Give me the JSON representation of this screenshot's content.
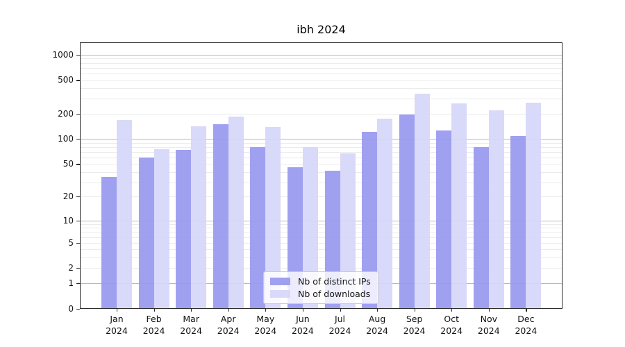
{
  "chart_data": {
    "type": "bar",
    "title": "ibh 2024",
    "categories": [
      "Jan 2024",
      "Feb 2024",
      "Mar 2024",
      "Apr 2024",
      "May 2024",
      "Jun 2024",
      "Jul 2024",
      "Aug 2024",
      "Sep 2024",
      "Oct 2024",
      "Nov 2024",
      "Dec 2024"
    ],
    "series": [
      {
        "name": "Nb of distinct IPs",
        "color": "rgba(152,152,240,0.92)",
        "values": [
          35,
          60,
          75,
          150,
          80,
          46,
          42,
          122,
          196,
          128,
          80,
          109
        ]
      },
      {
        "name": "Nb of downloads",
        "color": "rgba(214,214,248,0.92)",
        "values": [
          170,
          76,
          143,
          185,
          140,
          80,
          68,
          175,
          350,
          265,
          220,
          275
        ]
      }
    ],
    "yscale": "log1p",
    "ylim": [
      0,
      1400
    ],
    "yticks": [
      1000,
      500,
      200,
      100,
      50,
      20,
      10,
      5,
      2,
      1,
      0
    ],
    "ytick_labels": [
      "1000",
      "500",
      "200",
      "100",
      "50",
      "20",
      "10",
      "5",
      "2",
      "1",
      "0"
    ],
    "minor_grid_values": [
      2,
      3,
      4,
      6,
      7,
      8,
      9,
      20,
      30,
      40,
      60,
      70,
      80,
      90,
      200,
      300,
      400,
      600,
      700,
      800,
      900
    ],
    "major_grid_values": [
      1,
      10,
      100,
      1000
    ],
    "grid": true,
    "legend_position": "lower center"
  },
  "x_axis": {
    "months": [
      "Jan",
      "Feb",
      "Mar",
      "Apr",
      "May",
      "Jun",
      "Jul",
      "Aug",
      "Sep",
      "Oct",
      "Nov",
      "Dec"
    ],
    "year": "2024"
  }
}
